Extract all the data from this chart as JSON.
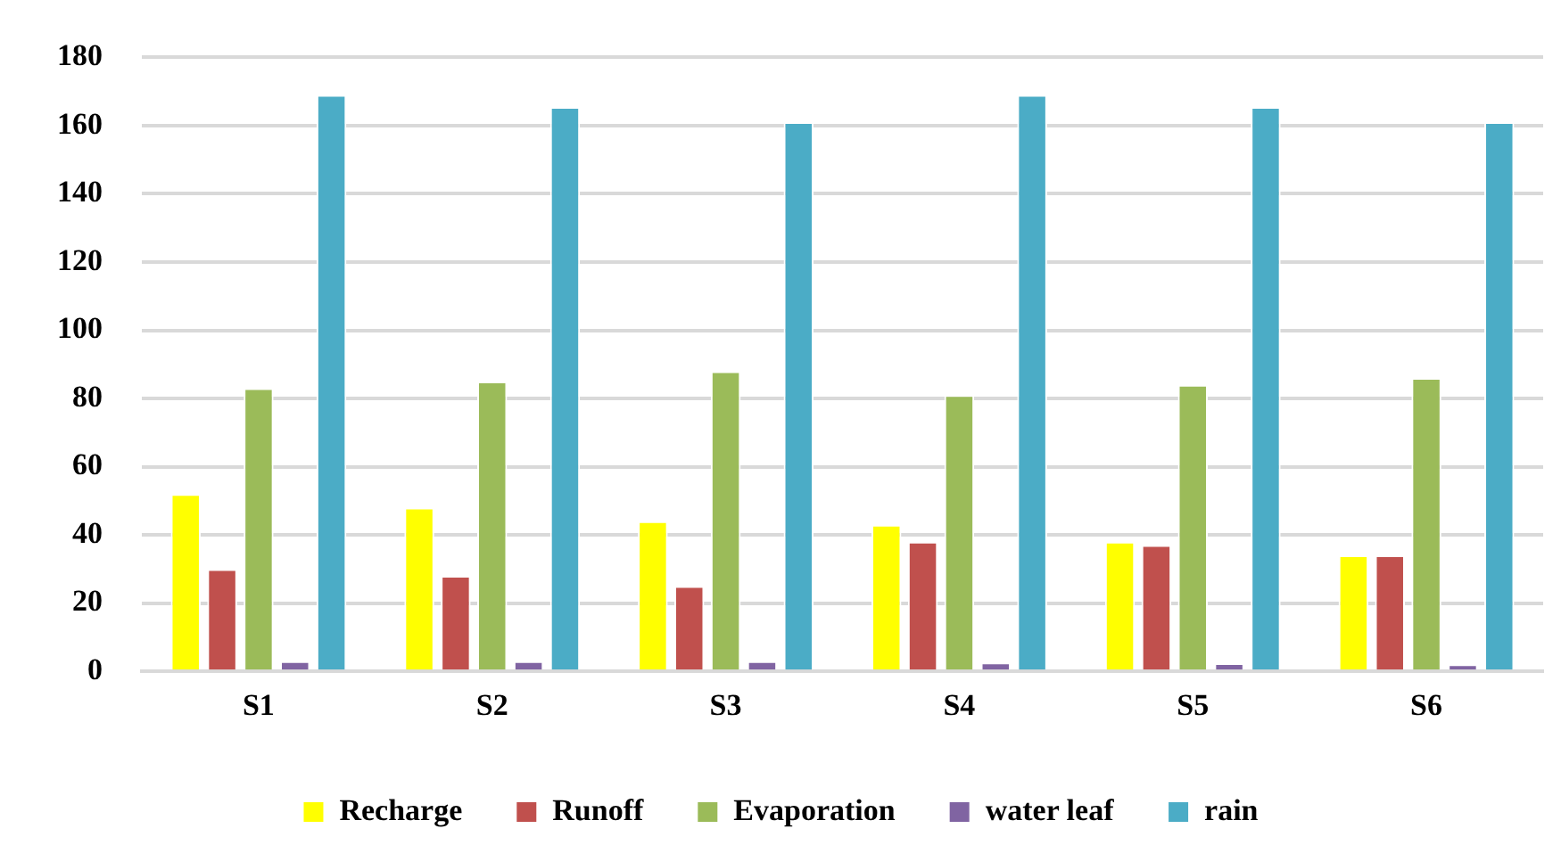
{
  "chart_data": {
    "type": "bar",
    "categories": [
      "S1",
      "S2",
      "S3",
      "S4",
      "S5",
      "S6"
    ],
    "series": [
      {
        "name": "Recharge",
        "color": "#ffff00",
        "values": [
          52,
          48,
          44,
          43,
          38,
          34
        ]
      },
      {
        "name": "Runoff",
        "color": "#c0504d",
        "values": [
          30,
          28,
          25,
          38,
          37,
          34
        ]
      },
      {
        "name": "Evaporation",
        "color": "#9bbb59",
        "values": [
          83,
          85,
          88,
          81,
          84,
          86
        ]
      },
      {
        "name": "water leaf",
        "color": "#8064a2",
        "values": [
          3,
          3,
          3,
          2.6,
          2.4,
          2.1
        ]
      },
      {
        "name": "rain",
        "color": "#4bacc6",
        "values": [
          169,
          165.5,
          161,
          169,
          165.5,
          161
        ]
      }
    ],
    "ylim": [
      0,
      180
    ],
    "yticks": [
      0,
      20,
      40,
      60,
      80,
      100,
      120,
      140,
      160,
      180
    ],
    "grid": "y",
    "legend": "bottom"
  }
}
